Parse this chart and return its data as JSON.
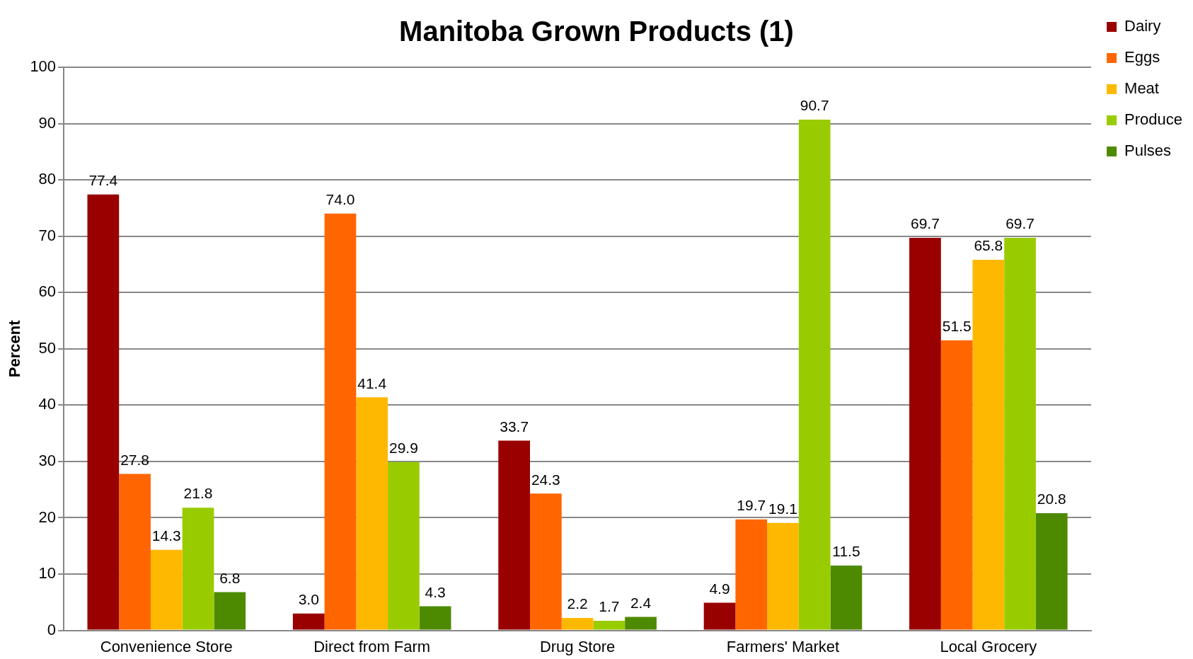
{
  "chart_data": {
    "type": "bar",
    "title": "Manitoba Grown Products (1)",
    "ylabel": "Percent",
    "categories": [
      "Convenience Store",
      "Direct from Farm",
      "Drug Store",
      "Farmers' Market",
      "Local Grocery"
    ],
    "series": [
      {
        "name": "Dairy",
        "color": "#990000",
        "values": [
          77.4,
          3.0,
          33.7,
          4.9,
          69.7
        ],
        "value_labels": [
          "77.4",
          "3.0",
          "33.7",
          "4.9",
          "69.7"
        ]
      },
      {
        "name": "Eggs",
        "color": "#ff6600",
        "values": [
          27.8,
          74.0,
          24.3,
          19.7,
          51.5
        ],
        "value_labels": [
          "27.8",
          "74.0",
          "24.3",
          "19.7",
          "51.5"
        ]
      },
      {
        "name": "Meat",
        "color": "#ffb800",
        "values": [
          14.3,
          41.4,
          2.2,
          19.1,
          65.8
        ],
        "value_labels": [
          "14.3",
          "41.4",
          "2.2",
          "19.1",
          "65.8"
        ]
      },
      {
        "name": "Produce",
        "color": "#99cc00",
        "values": [
          21.8,
          29.9,
          1.7,
          90.7,
          69.7
        ],
        "value_labels": [
          "21.8",
          "29.9",
          "1.7",
          "90.7",
          "69.7"
        ]
      },
      {
        "name": "Pulses",
        "color": "#4e8a00",
        "values": [
          6.8,
          4.3,
          2.4,
          11.5,
          20.8
        ],
        "value_labels": [
          "6.8",
          "4.3",
          "2.4",
          "11.5",
          "20.8"
        ]
      }
    ],
    "ylim": [
      0,
      100
    ],
    "yticks": [
      0,
      10,
      20,
      30,
      40,
      50,
      60,
      70,
      80,
      90,
      100
    ],
    "grid": "y",
    "legend": "top right"
  }
}
